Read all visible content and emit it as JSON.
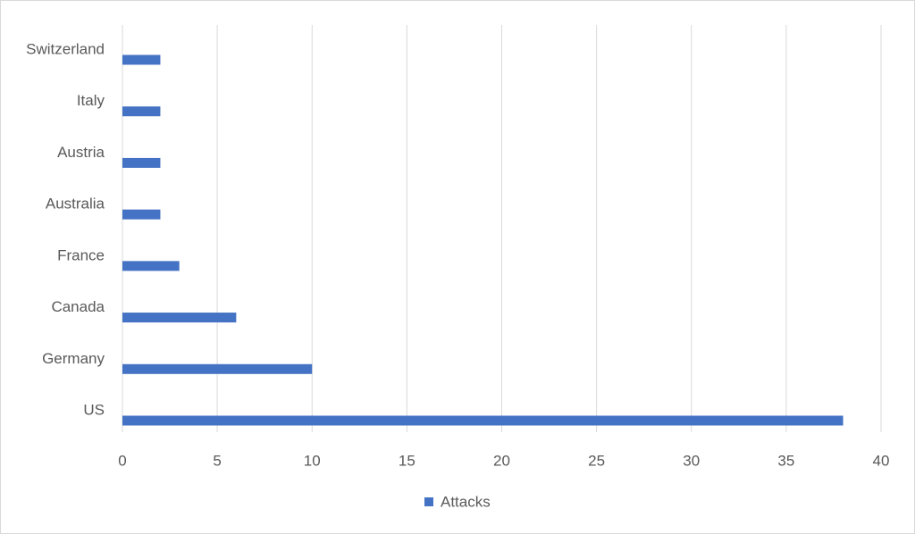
{
  "chart_data": {
    "type": "bar",
    "orientation": "horizontal",
    "categories": [
      "US",
      "Germany",
      "Canada",
      "France",
      "Australia",
      "Austria",
      "Italy",
      "Switzerland"
    ],
    "series": [
      {
        "name": "Attacks",
        "color": "#4472c4",
        "values": [
          38,
          10,
          6,
          3,
          2,
          2,
          2,
          2
        ]
      }
    ],
    "xlim": [
      0,
      40
    ],
    "xticks": [
      0,
      5,
      10,
      15,
      20,
      25,
      30,
      35,
      40
    ],
    "grid": true,
    "legend": "bottom"
  }
}
